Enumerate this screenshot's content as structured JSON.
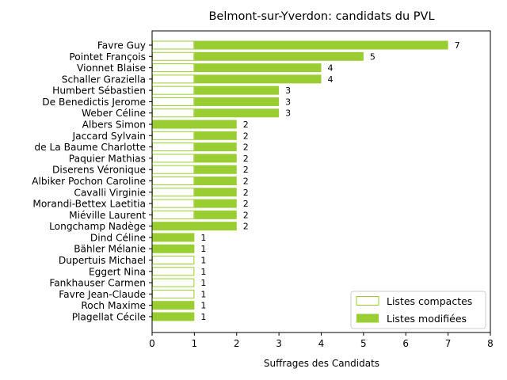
{
  "colors": {
    "accent": "#9acd32",
    "axis": "#000000",
    "background": "#ffffff"
  },
  "chart_data": {
    "type": "bar",
    "orientation": "horizontal",
    "stacked": true,
    "title": "Belmont-sur-Yverdon: candidats du PVL",
    "xlabel": "Suffrages des Candidats",
    "ylabel": "",
    "xlim": [
      0,
      8
    ],
    "xticks": [
      0,
      1,
      2,
      3,
      4,
      5,
      6,
      7,
      8
    ],
    "grid": false,
    "legend_position": "lower-right",
    "categories": [
      "Favre Guy",
      "Pointet François",
      "Vionnet Blaise",
      "Schaller Graziella",
      "Humbert Sébastien",
      "De Benedictis Jerome",
      "Weber Céline",
      "Albers Simon",
      "Jaccard Sylvain",
      "de La Baume Charlotte",
      "Paquier Mathias",
      "Diserens Véronique",
      "Albiker Pochon Caroline",
      "Cavalli Virginie",
      "Morandi-Bettex Laetitia",
      "Miéville Laurent",
      "Longchamp Nadège",
      "Dind Céline",
      "Bähler Mélanie",
      "Dupertuis Michael",
      "Eggert Nina",
      "Fankhauser Carmen",
      "Favre Jean-Claude",
      "Roch Maxime",
      "Plagellat Cécile"
    ],
    "series": [
      {
        "name": "Listes compactes",
        "style": "outline",
        "values": [
          1,
          1,
          1,
          1,
          1,
          1,
          1,
          0,
          1,
          1,
          1,
          1,
          1,
          1,
          1,
          1,
          0,
          0,
          0,
          1,
          1,
          1,
          1,
          0,
          0
        ]
      },
      {
        "name": "Listes modifiées",
        "style": "filled",
        "values": [
          6,
          4,
          3,
          3,
          2,
          2,
          2,
          2,
          1,
          1,
          1,
          1,
          1,
          1,
          1,
          1,
          2,
          1,
          1,
          0,
          0,
          0,
          0,
          1,
          1
        ]
      }
    ],
    "totals": [
      7,
      5,
      4,
      4,
      3,
      3,
      3,
      2,
      2,
      2,
      2,
      2,
      2,
      2,
      2,
      2,
      2,
      1,
      1,
      1,
      1,
      1,
      1,
      1,
      1
    ]
  }
}
